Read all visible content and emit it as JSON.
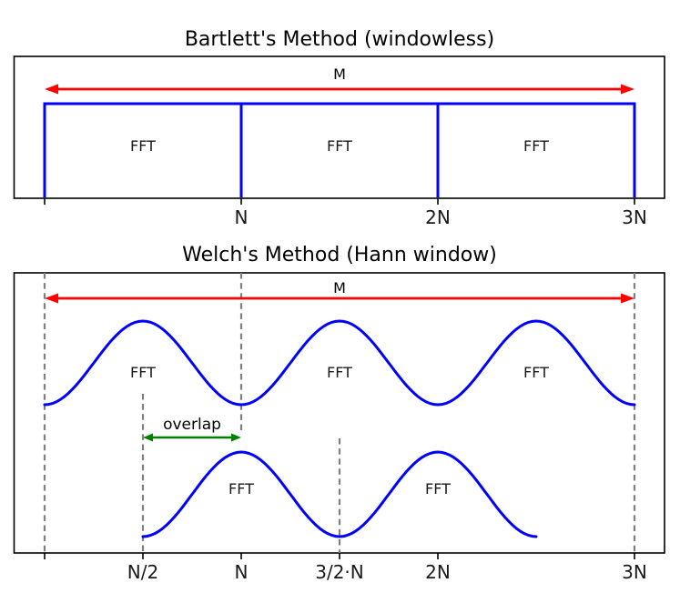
{
  "colors": {
    "window": "#0000ff",
    "span_arrow": "#ff0000",
    "overlap_arrow": "#008000",
    "dashed_guide": "#7f7f7f",
    "frame": "#000000",
    "text": "#000000"
  },
  "chart_data": [
    {
      "type": "line",
      "title": "Bartlett's Method (windowless)",
      "window_shape": "rectangular (boxcar), height constant",
      "x_unit": "samples in units of N",
      "xlim": [
        -0.16,
        3.16
      ],
      "grid": false,
      "window_color": "#0000ff",
      "x_ticks": [
        {
          "x": 0,
          "label": ""
        },
        {
          "x": 1,
          "label": "N"
        },
        {
          "x": 2,
          "label": "2N"
        },
        {
          "x": 3,
          "label": "3N"
        }
      ],
      "segments": [
        {
          "from": 0,
          "to": 1,
          "label": "FFT"
        },
        {
          "from": 1,
          "to": 2,
          "label": "FFT"
        },
        {
          "from": 2,
          "to": 3,
          "label": "FFT"
        }
      ],
      "span_arrow": {
        "label": "M",
        "from": 0,
        "to": 3,
        "color": "#ff0000"
      }
    },
    {
      "type": "line",
      "title": "Welch's Method (Hann window)",
      "window_shape": "hann",
      "x_unit": "samples in units of N",
      "xlim": [
        -0.16,
        3.16
      ],
      "grid": false,
      "window_color": "#0000ff",
      "x_ticks": [
        {
          "x": 0,
          "label": ""
        },
        {
          "x": 0.5,
          "label": "N/2"
        },
        {
          "x": 1,
          "label": "N"
        },
        {
          "x": 1.5,
          "label": "3/2·N"
        },
        {
          "x": 2,
          "label": "2N"
        },
        {
          "x": 3,
          "label": "3N"
        }
      ],
      "rows": [
        {
          "name": "upper-windows",
          "segments": [
            {
              "from": 0,
              "to": 1,
              "label": "FFT"
            },
            {
              "from": 1,
              "to": 2,
              "label": "FFT"
            },
            {
              "from": 2,
              "to": 3,
              "label": "FFT"
            }
          ]
        },
        {
          "name": "lower-windows-offset-half-N",
          "segments": [
            {
              "from": 0.5,
              "to": 1.5,
              "label": "FFT"
            },
            {
              "from": 1.5,
              "to": 2.5,
              "label": "FFT"
            }
          ]
        }
      ],
      "span_arrow": {
        "label": "M",
        "from": 0,
        "to": 3,
        "color": "#ff0000"
      },
      "overlap_arrow": {
        "label": "overlap",
        "from": 0.5,
        "to": 1,
        "color": "#008000"
      },
      "dashed_guides": [
        {
          "x": 0,
          "extent": "full"
        },
        {
          "x": 0.5,
          "extent": "lower"
        },
        {
          "x": 1,
          "extent": "upper"
        },
        {
          "x": 1.5,
          "extent": "lower"
        },
        {
          "x": 3,
          "extent": "full"
        }
      ],
      "guide_color": "#7f7f7f"
    }
  ]
}
